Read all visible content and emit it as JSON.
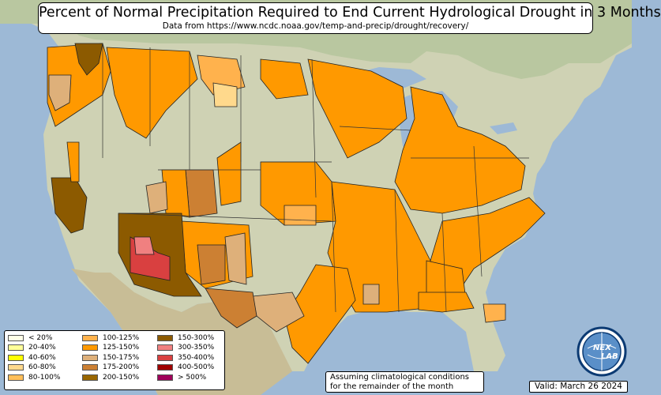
{
  "title": "Percent of Normal Precipitation Required to End Current Hydrological Drought in 3 Months",
  "subtitle": "Data from https://www.ncdc.noaa.gov/temp-and-precip/drought/recovery/",
  "legend": [
    {
      "label": "< 20%",
      "color": "#ffffe6"
    },
    {
      "label": "20-40%",
      "color": "#ffff99"
    },
    {
      "label": "40-60%",
      "color": "#ffff00"
    },
    {
      "label": "60-80%",
      "color": "#ffd98c"
    },
    {
      "label": "80-100%",
      "color": "#ffbf59"
    },
    {
      "label": "100-125%",
      "color": "#ffb24d"
    },
    {
      "label": "125-150%",
      "color": "#ff9900"
    },
    {
      "label": "150-175%",
      "color": "#deb07a"
    },
    {
      "label": "175-200%",
      "color": "#cc8033"
    },
    {
      "label": "200-150%",
      "color": "#996600"
    },
    {
      "label": "150-300%",
      "color": "#8c5a00"
    },
    {
      "label": "300-350%",
      "color": "#f08080"
    },
    {
      "label": "350-400%",
      "color": "#d94040"
    },
    {
      "label": "400-500%",
      "color": "#a00000"
    },
    {
      "label": "> 500%",
      "color": "#a0005a"
    }
  ],
  "note": {
    "line1": "Assuming climatological conditions",
    "line2": "for the remainder of the month"
  },
  "valid": "Valid: March 26 2024",
  "logo": {
    "text_top": "NEX",
    "text_bottom": "LAB",
    "colors": {
      "ring": "#0b3a73",
      "globe": "#5a8fc8"
    }
  },
  "colors": {
    "ocean": "#9db9d6",
    "land": "#dcd6bd",
    "region_orange": "#ff9900",
    "region_light_orange": "#ffb24d",
    "region_tan": "#deb07a",
    "region_brown": "#cc8033",
    "region_dark_brown": "#8c5a00",
    "region_red": "#d94040",
    "region_pink": "#f08080"
  }
}
